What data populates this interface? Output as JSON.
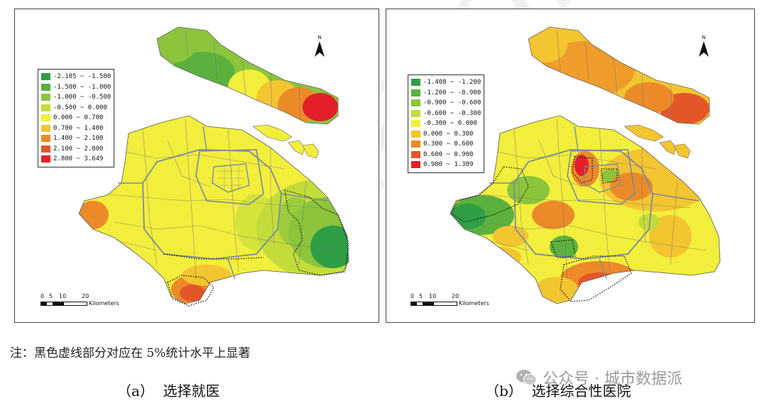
{
  "panel_a": {
    "legend": [
      {
        "label": "-2.105 ~ -1.500",
        "color": "#2f9e46"
      },
      {
        "label": "-1.500 ~ -1.000",
        "color": "#5cb13e"
      },
      {
        "label": "-1.000 ~ -0.500",
        "color": "#8cc43c"
      },
      {
        "label": "-0.500 ~ 0.000",
        "color": "#c3dc3a"
      },
      {
        "label": "0.000 ~ 0.700",
        "color": "#f2ee3c"
      },
      {
        "label": "0.700 ~ 1.400",
        "color": "#f3c530"
      },
      {
        "label": "1.400 ~ 2.100",
        "color": "#ec8a28"
      },
      {
        "label": "2.100 ~ 2.800",
        "color": "#e4562a"
      },
      {
        "label": "2.800 ~ 3.649",
        "color": "#e3202a"
      }
    ],
    "north": "N",
    "scale": {
      "ticks": [
        "0",
        "5",
        "10",
        "20"
      ],
      "unit": "Kilometers"
    },
    "caption": "（a）  选择就医"
  },
  "panel_b": {
    "legend": [
      {
        "label": "-1.408 ~ -1.200",
        "color": "#2f9e46"
      },
      {
        "label": "-1.200 ~ -0.900",
        "color": "#5cb13e"
      },
      {
        "label": "-0.900 ~ -0.600",
        "color": "#8cc43c"
      },
      {
        "label": "-0.600 ~ -0.300",
        "color": "#c3dc3a"
      },
      {
        "label": "-0.300 ~ 0.000",
        "color": "#f2ee3c"
      },
      {
        "label": "0.000 ~ 0.300",
        "color": "#f3c530"
      },
      {
        "label": "0.300 ~ 0.600",
        "color": "#ec8a28"
      },
      {
        "label": "0.600 ~ 0.900",
        "color": "#e4562a"
      },
      {
        "label": "0.900 ~ 1.309",
        "color": "#e3202a"
      }
    ],
    "north": "N",
    "scale": {
      "ticks": [
        "0",
        "5",
        "10",
        "20"
      ],
      "unit": "Kilometers"
    },
    "caption": "（b）  选择综合性医院"
  },
  "note": "注：黑色虚线部分对应在 5%统计水平上显著",
  "wechat": {
    "text": "公众号 · 城市数据派",
    "icon": "wechat-icon"
  },
  "watermark": "REPORT 2022"
}
